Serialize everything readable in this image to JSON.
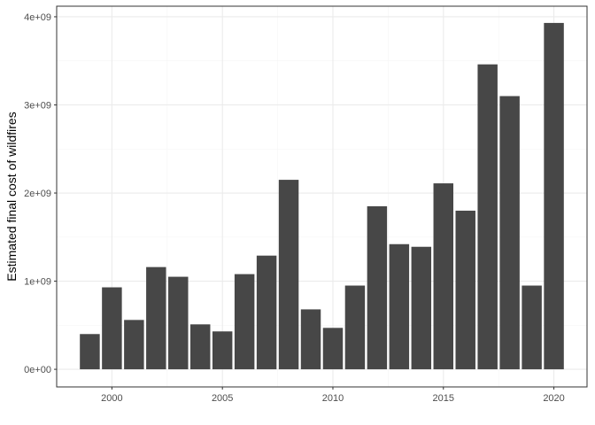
{
  "chart_data": {
    "type": "bar",
    "title": "",
    "xlabel": "",
    "ylabel": "Estimated final cost of wildfires",
    "x": [
      1999,
      2000,
      2001,
      2002,
      2003,
      2004,
      2005,
      2006,
      2007,
      2008,
      2009,
      2010,
      2011,
      2012,
      2013,
      2014,
      2015,
      2016,
      2017,
      2018,
      2019,
      2020
    ],
    "values": [
      400000000,
      930000000,
      560000000,
      1160000000,
      1050000000,
      510000000,
      430000000,
      1080000000,
      1290000000,
      2150000000,
      680000000,
      470000000,
      950000000,
      1850000000,
      1420000000,
      1390000000,
      2110000000,
      1800000000,
      3460000000,
      3100000000,
      950000000,
      3930000000
    ],
    "xlim": [
      1997.5,
      2021.5
    ],
    "ylim": [
      -200000000,
      4120000000
    ],
    "xticks": [
      2000,
      2005,
      2010,
      2015,
      2020
    ],
    "xtick_labels": [
      "2000",
      "2005",
      "2010",
      "2015",
      "2020"
    ],
    "yticks": [
      0,
      1000000000,
      2000000000,
      3000000000,
      4000000000
    ],
    "ytick_labels": [
      "0e+00",
      "1e+09",
      "2e+09",
      "3e+09",
      "4e+09"
    ],
    "grid": true,
    "legend": "none",
    "colors": {
      "bar": "#474747",
      "panel_border": "#333333",
      "grid_major": "#ebebeb",
      "grid_minor": "#f5f5f5",
      "tick": "#333333"
    }
  }
}
